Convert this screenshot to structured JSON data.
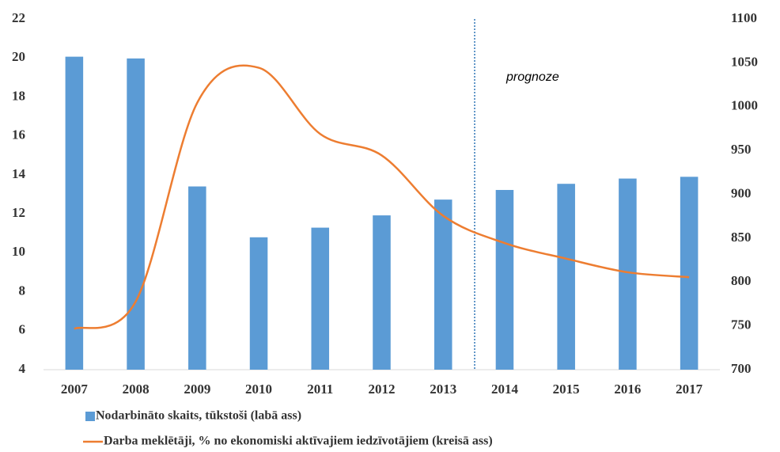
{
  "chart_data": {
    "type": "bar",
    "categories": [
      "2007",
      "2008",
      "2009",
      "2010",
      "2011",
      "2012",
      "2013",
      "2014",
      "2015",
      "2016",
      "2017"
    ],
    "series": [
      {
        "name": "Nodarbināto skaits, tūkstoši (labā ass)",
        "type": "bar",
        "axis": "y2",
        "color": "#5b9bd5",
        "values": [
          1057,
          1055,
          909,
          851,
          862,
          876,
          894,
          905,
          912,
          918,
          920
        ]
      },
      {
        "name": "Darba meklētāji, % no ekonomiski aktīvajiem iedzīvotājiem (kreisā ass)",
        "type": "line",
        "axis": "y",
        "color": "#ed7d31",
        "values": [
          6.1,
          7.5,
          17.7,
          19.5,
          16.1,
          15.0,
          11.9,
          10.5,
          9.7,
          9.0,
          8.75
        ]
      }
    ],
    "ylim": [
      4,
      22
    ],
    "yticks": [
      4,
      6,
      8,
      10,
      12,
      14,
      16,
      18,
      20,
      22
    ],
    "y2lim": [
      700,
      1100
    ],
    "y2ticks": [
      700,
      750,
      800,
      850,
      900,
      950,
      1000,
      1050,
      1100
    ],
    "annotations": [
      "prognoze"
    ],
    "grid": false
  }
}
